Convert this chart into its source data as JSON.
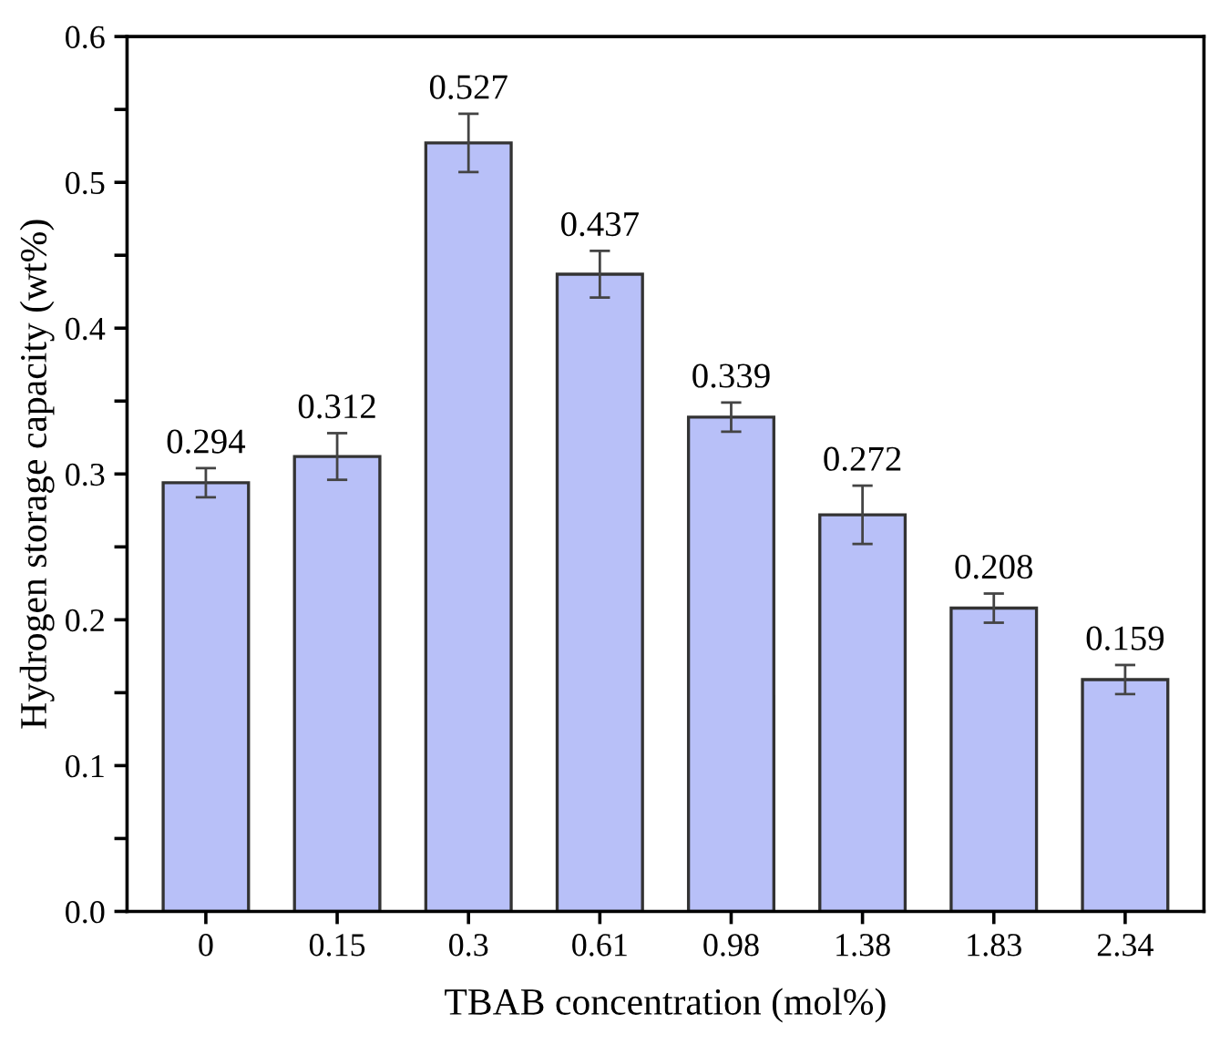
{
  "chart_data": {
    "type": "bar",
    "xlabel": "TBAB concentration (mol%)",
    "ylabel": "Hydrogen storage capacity (wt%)",
    "categories": [
      "0",
      "0.15",
      "0.3",
      "0.61",
      "0.98",
      "1.38",
      "1.83",
      "2.34"
    ],
    "values": [
      0.294,
      0.312,
      0.527,
      0.437,
      0.339,
      0.272,
      0.208,
      0.159
    ],
    "errors": [
      0.01,
      0.016,
      0.02,
      0.016,
      0.01,
      0.02,
      0.01,
      0.01
    ],
    "color": "#b8c0f8",
    "data_labels": true,
    "ylim": [
      0,
      0.6
    ],
    "yticks": [
      {
        "value": 0,
        "label": "0.0"
      },
      {
        "value": 0.05,
        "label": null
      },
      0.1,
      {
        "value": 0.15,
        "label": null
      },
      0.2,
      {
        "value": 0.25,
        "label": null
      },
      0.3,
      {
        "value": 0.35,
        "label": null
      },
      0.4,
      {
        "value": 0.45,
        "label": null
      },
      0.5,
      {
        "value": 0.55,
        "label": null
      },
      0.6
    ],
    "grid": false
  }
}
